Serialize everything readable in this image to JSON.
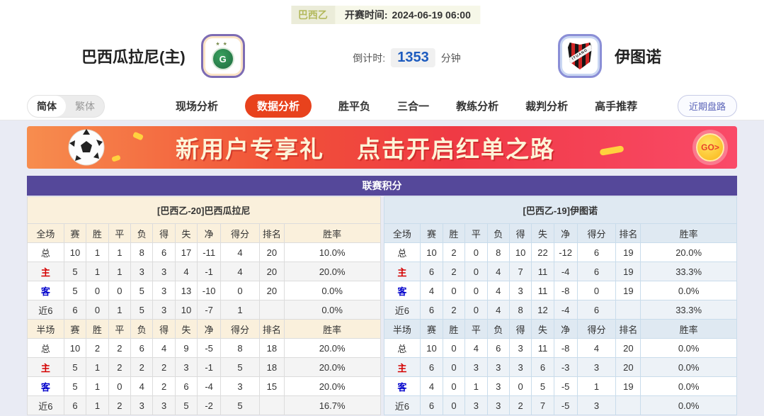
{
  "header": {
    "league_badge": "巴西乙",
    "kickoff_label": "开赛时间:",
    "kickoff_time": "2024-06-19 06:00",
    "home_team": "巴西瓜拉尼(主)",
    "away_team": "伊图诺",
    "home_logo_letter": "G",
    "away_logo_band": "ITUANO",
    "countdown_label": "倒计时:",
    "countdown_value": "1353",
    "countdown_unit": "分钟"
  },
  "nav": {
    "lang_simplified": "简体",
    "lang_traditional": "繁体",
    "tabs": [
      {
        "label": "现场分析",
        "active": false
      },
      {
        "label": "数据分析",
        "active": true
      },
      {
        "label": "胜平负",
        "active": false
      },
      {
        "label": "三合一",
        "active": false
      },
      {
        "label": "教练分析",
        "active": false
      },
      {
        "label": "裁判分析",
        "active": false
      },
      {
        "label": "高手推荐",
        "active": false
      }
    ],
    "recent_trend_button": "近期盘路"
  },
  "banner": {
    "title": "新用户专享礼",
    "subtitle": "点击开启红单之路",
    "go_label": "GO>"
  },
  "colors": {
    "accent_red": "#e8421d",
    "table_header_purple": "#55489a",
    "home_header_bg": "#faf0dc",
    "away_header_bg": "#dfe9f2",
    "countdown_blue": "#1d5bbf",
    "row_home_label_red": "#d40000",
    "row_away_label_blue": "#0000cc"
  },
  "table": {
    "title": "联赛积分",
    "columns_full": [
      "全场",
      "赛",
      "胜",
      "平",
      "负",
      "得",
      "失",
      "净",
      "得分",
      "排名",
      "胜率"
    ],
    "columns_half": [
      "半场",
      "赛",
      "胜",
      "平",
      "负",
      "得",
      "失",
      "净",
      "得分",
      "排名",
      "胜率"
    ],
    "home": {
      "header": "[巴西乙-20]巴西瓜拉尼",
      "full_rows": [
        [
          "总",
          "10",
          "1",
          "1",
          "8",
          "6",
          "17",
          "-11",
          "4",
          "20",
          "10.0%"
        ],
        [
          "主",
          "5",
          "1",
          "1",
          "3",
          "3",
          "4",
          "-1",
          "4",
          "20",
          "20.0%"
        ],
        [
          "客",
          "5",
          "0",
          "0",
          "5",
          "3",
          "13",
          "-10",
          "0",
          "20",
          "0.0%"
        ],
        [
          "近6",
          "6",
          "0",
          "1",
          "5",
          "3",
          "10",
          "-7",
          "1",
          "",
          "0.0%"
        ]
      ],
      "half_rows": [
        [
          "总",
          "10",
          "2",
          "2",
          "6",
          "4",
          "9",
          "-5",
          "8",
          "18",
          "20.0%"
        ],
        [
          "主",
          "5",
          "1",
          "2",
          "2",
          "2",
          "3",
          "-1",
          "5",
          "18",
          "20.0%"
        ],
        [
          "客",
          "5",
          "1",
          "0",
          "4",
          "2",
          "6",
          "-4",
          "3",
          "15",
          "20.0%"
        ],
        [
          "近6",
          "6",
          "1",
          "2",
          "3",
          "3",
          "5",
          "-2",
          "5",
          "",
          "16.7%"
        ]
      ]
    },
    "away": {
      "header": "[巴西乙-19]伊图诺",
      "full_rows": [
        [
          "总",
          "10",
          "2",
          "0",
          "8",
          "10",
          "22",
          "-12",
          "6",
          "19",
          "20.0%"
        ],
        [
          "主",
          "6",
          "2",
          "0",
          "4",
          "7",
          "11",
          "-4",
          "6",
          "19",
          "33.3%"
        ],
        [
          "客",
          "4",
          "0",
          "0",
          "4",
          "3",
          "11",
          "-8",
          "0",
          "19",
          "0.0%"
        ],
        [
          "近6",
          "6",
          "2",
          "0",
          "4",
          "8",
          "12",
          "-4",
          "6",
          "",
          "33.3%"
        ]
      ],
      "half_rows": [
        [
          "总",
          "10",
          "0",
          "4",
          "6",
          "3",
          "11",
          "-8",
          "4",
          "20",
          "0.0%"
        ],
        [
          "主",
          "6",
          "0",
          "3",
          "3",
          "3",
          "6",
          "-3",
          "3",
          "20",
          "0.0%"
        ],
        [
          "客",
          "4",
          "0",
          "1",
          "3",
          "0",
          "5",
          "-5",
          "1",
          "19",
          "0.0%"
        ],
        [
          "近6",
          "6",
          "0",
          "3",
          "3",
          "2",
          "7",
          "-5",
          "3",
          "",
          "0.0%"
        ]
      ]
    }
  }
}
